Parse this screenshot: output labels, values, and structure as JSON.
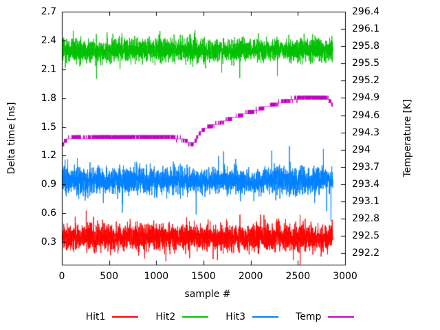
{
  "colors": {
    "background": "#ffffff",
    "foreground": "#000000"
  },
  "chart_data": {
    "type": "line",
    "title": "",
    "xlabel": "sample #",
    "ylabel_left": "Delta time [ns]",
    "ylabel_right": "Temperature [K]",
    "grid": false,
    "legend_position": "below",
    "x_range": [
      0,
      3000
    ],
    "y_left_range": [
      0.064,
      2.7
    ],
    "y_right_range": [
      292.0,
      296.4
    ],
    "n_samples": 2870,
    "x_ticks": [
      [
        0,
        "0"
      ],
      [
        500,
        "500"
      ],
      [
        1000,
        "1000"
      ],
      [
        1500,
        "1500"
      ],
      [
        2000,
        "2000"
      ],
      [
        2500,
        "2500"
      ],
      [
        3000,
        "3000"
      ]
    ],
    "y_left_ticks": [
      [
        0.3,
        "0.3"
      ],
      [
        0.6,
        "0.6"
      ],
      [
        0.9,
        "0.9"
      ],
      [
        1.2,
        "1.2"
      ],
      [
        1.5,
        "1.5"
      ],
      [
        1.8,
        "1.8"
      ],
      [
        2.1,
        "2.1"
      ],
      [
        2.4,
        "2.4"
      ],
      [
        2.7,
        "2.7"
      ]
    ],
    "y_right_ticks": [
      [
        292.2,
        "292.2"
      ],
      [
        292.5,
        "292.5"
      ],
      [
        292.8,
        "292.8"
      ],
      [
        293.1,
        "293.1"
      ],
      [
        293.4,
        "293.4"
      ],
      [
        293.7,
        "293.7"
      ],
      [
        294,
        "294"
      ],
      [
        294.3,
        "294.3"
      ],
      [
        294.6,
        "294.6"
      ],
      [
        294.9,
        "294.9"
      ],
      [
        295.2,
        "295.2"
      ],
      [
        295.5,
        "295.5"
      ],
      [
        295.8,
        "295.8"
      ],
      [
        296.1,
        "296.1"
      ],
      [
        296.4,
        "296.4"
      ]
    ],
    "series": [
      {
        "name": "Hit1",
        "color": "#ff0000",
        "axis": "left",
        "kind": "noise",
        "mean": 0.35,
        "sd": 0.068,
        "spike_prob": 0.012,
        "spike_amp": [
          0.1,
          0.25
        ],
        "seed": 101
      },
      {
        "name": "Hit2",
        "color": "#00c000",
        "axis": "left",
        "kind": "noise",
        "mean": 2.3,
        "sd": 0.062,
        "spike_prob": 0.012,
        "spike_amp": [
          0.08,
          0.2
        ],
        "seed": 202
      },
      {
        "name": "Hit3",
        "color": "#0080ff",
        "axis": "left",
        "kind": "noise",
        "mean": 0.94,
        "sd": 0.066,
        "spike_prob": 0.012,
        "spike_amp": [
          0.1,
          0.3
        ],
        "seed": 303
      },
      {
        "name": "Temp",
        "color": "#c000c0",
        "axis": "right",
        "kind": "steps",
        "noise_sd": 0.015,
        "quantize": 0.0625,
        "seed": 404,
        "keypoints": [
          [
            0,
            294.08
          ],
          [
            60,
            294.18
          ],
          [
            150,
            294.22
          ],
          [
            250,
            294.19
          ],
          [
            400,
            294.22
          ],
          [
            600,
            294.21
          ],
          [
            800,
            294.23
          ],
          [
            1000,
            294.22
          ],
          [
            1150,
            294.23
          ],
          [
            1300,
            294.17
          ],
          [
            1380,
            294.08
          ],
          [
            1430,
            294.2
          ],
          [
            1480,
            294.33
          ],
          [
            1560,
            294.4
          ],
          [
            1650,
            294.45
          ],
          [
            1750,
            294.52
          ],
          [
            1850,
            294.57
          ],
          [
            1950,
            294.63
          ],
          [
            2050,
            294.68
          ],
          [
            2150,
            294.74
          ],
          [
            2250,
            294.79
          ],
          [
            2350,
            294.84
          ],
          [
            2450,
            294.88
          ],
          [
            2550,
            294.91
          ],
          [
            2650,
            294.92
          ],
          [
            2720,
            294.9
          ],
          [
            2780,
            294.91
          ],
          [
            2830,
            294.86
          ],
          [
            2870,
            294.77
          ]
        ]
      }
    ]
  }
}
